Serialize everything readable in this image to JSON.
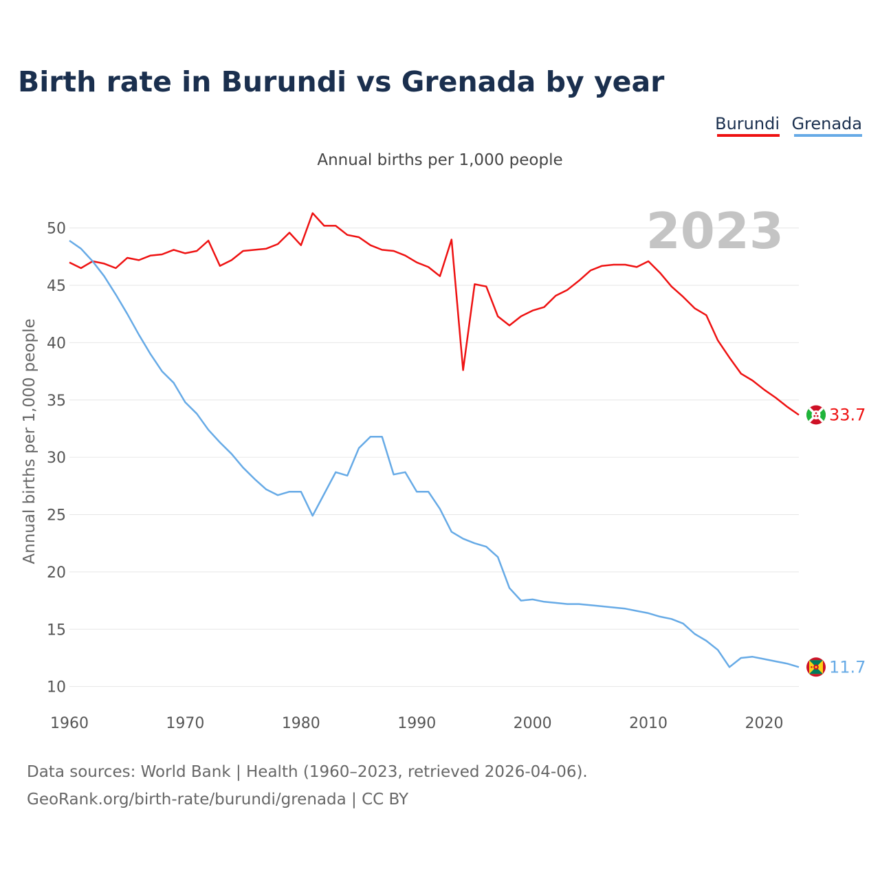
{
  "chart_data": {
    "type": "line",
    "title": "Birth rate in Burundi vs Grenada by year",
    "subtitle": "Annual births per 1,000 people",
    "ylabel": "Annual births per 1,000 people",
    "xlabel": "",
    "highlight_year": "2023",
    "xlim": [
      1960,
      2023
    ],
    "ylim": [
      8.6,
      52.5
    ],
    "x_ticks": [
      1960,
      1970,
      1980,
      1990,
      2000,
      2010,
      2020
    ],
    "y_ticks": [
      10,
      15,
      20,
      25,
      30,
      35,
      40,
      45,
      50
    ],
    "grid": true,
    "legend_position": "top-right",
    "x": [
      1960,
      1961,
      1962,
      1963,
      1964,
      1965,
      1966,
      1967,
      1968,
      1969,
      1970,
      1971,
      1972,
      1973,
      1974,
      1975,
      1976,
      1977,
      1978,
      1979,
      1980,
      1981,
      1982,
      1983,
      1984,
      1985,
      1986,
      1987,
      1988,
      1989,
      1990,
      1991,
      1992,
      1993,
      1994,
      1995,
      1996,
      1997,
      1998,
      1999,
      2000,
      2001,
      2002,
      2003,
      2004,
      2005,
      2006,
      2007,
      2008,
      2009,
      2010,
      2011,
      2012,
      2013,
      2014,
      2015,
      2016,
      2017,
      2018,
      2019,
      2020,
      2021,
      2022,
      2023
    ],
    "series": [
      {
        "name": "Burundi",
        "color": "#ee1111",
        "end_label": "33.7",
        "flag": "burundi-flag-icon",
        "values": [
          47.0,
          46.5,
          47.1,
          46.9,
          46.5,
          47.4,
          47.2,
          47.6,
          47.7,
          48.1,
          47.8,
          48.0,
          48.9,
          46.7,
          47.2,
          48.0,
          48.1,
          48.2,
          48.6,
          49.6,
          48.5,
          51.3,
          50.2,
          50.2,
          49.4,
          49.2,
          48.5,
          48.1,
          48.0,
          47.6,
          47.0,
          46.6,
          45.8,
          49.0,
          37.6,
          45.1,
          44.9,
          42.3,
          41.5,
          42.3,
          42.8,
          43.1,
          44.1,
          44.6,
          45.4,
          46.3,
          46.7,
          46.8,
          46.8,
          46.6,
          47.1,
          46.1,
          44.9,
          44.0,
          43.0,
          42.4,
          40.2,
          38.7,
          37.3,
          36.7,
          35.9,
          35.2,
          34.4,
          33.7
        ]
      },
      {
        "name": "Grenada",
        "color": "#66aae6",
        "end_label": "11.7",
        "flag": "grenada-flag-icon",
        "values": [
          48.9,
          48.2,
          47.1,
          45.8,
          44.2,
          42.5,
          40.7,
          39.0,
          37.5,
          36.5,
          34.8,
          33.8,
          32.4,
          31.3,
          30.3,
          29.1,
          28.1,
          27.2,
          26.7,
          27.0,
          27.0,
          24.9,
          26.8,
          28.7,
          28.4,
          30.8,
          31.8,
          31.8,
          28.5,
          28.7,
          27.0,
          27.0,
          25.5,
          23.5,
          22.9,
          22.5,
          22.2,
          21.3,
          18.6,
          17.5,
          17.6,
          17.4,
          17.3,
          17.2,
          17.2,
          17.1,
          17.0,
          16.9,
          16.8,
          16.6,
          16.4,
          16.1,
          15.9,
          15.5,
          14.6,
          14.0,
          13.2,
          11.7,
          12.5,
          12.6,
          12.4,
          12.2,
          12.0,
          11.7
        ]
      }
    ]
  },
  "legend": [
    {
      "label": "Burundi",
      "color": "#ee1111"
    },
    {
      "label": "Grenada",
      "color": "#66aae6"
    }
  ],
  "source": {
    "line1": "Data sources: World Bank | Health (1960–2023, retrieved 2026-04-06).",
    "line2": "GeoRank.org/birth-rate/burundi/grenada | CC BY"
  }
}
